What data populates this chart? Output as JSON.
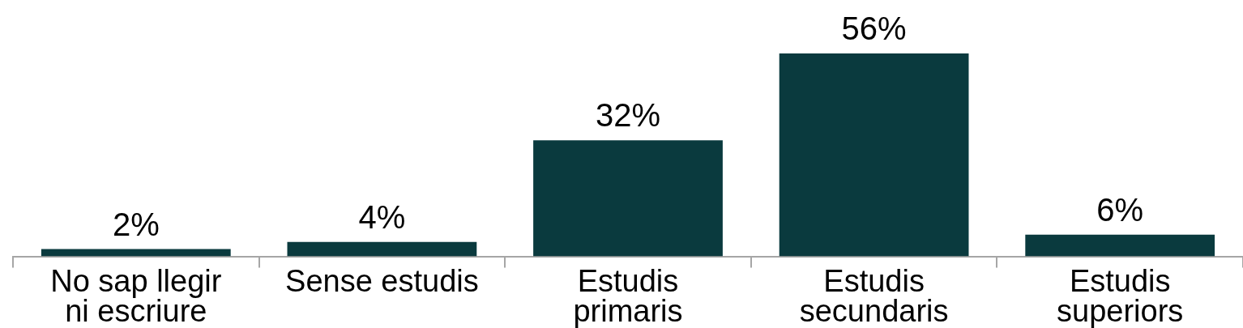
{
  "chart_data": {
    "type": "bar",
    "categories": [
      "No sap llegir\nni escriure",
      "Sense estudis",
      "Estudis\nprimaris",
      "Estudis\nsecundaris",
      "Estudis\nsuperiors"
    ],
    "values": [
      2,
      4,
      32,
      56,
      6
    ],
    "value_labels": [
      "2%",
      "4%",
      "32%",
      "56%",
      "6%"
    ],
    "color": "#0a3a3e",
    "legend": false
  }
}
